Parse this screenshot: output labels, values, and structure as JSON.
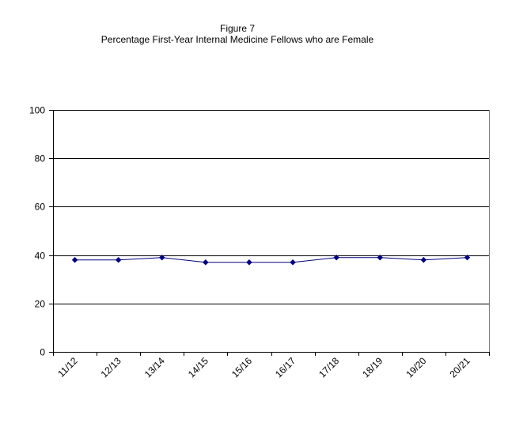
{
  "chart_data": {
    "type": "line",
    "title": "Figure 7",
    "subtitle": "Percentage First-Year Internal Medicine Fellows who are Female",
    "xlabel": "",
    "ylabel": "",
    "categories": [
      "11/12",
      "12/13",
      "13/14",
      "14/15",
      "15/16",
      "16/17",
      "17/18",
      "18/19",
      "19/20",
      "20/21"
    ],
    "series": [
      {
        "values": [
          38,
          38,
          39,
          37,
          37,
          37,
          39,
          39,
          38,
          39
        ]
      }
    ],
    "ylim": [
      0,
      100
    ],
    "yticks": [
      0,
      20,
      40,
      60,
      80,
      100
    ],
    "grid": true,
    "legend": "none",
    "colors": {
      "line": "#000080",
      "marker": "#000080",
      "gridline": "#000000",
      "axis": "#000000"
    }
  }
}
